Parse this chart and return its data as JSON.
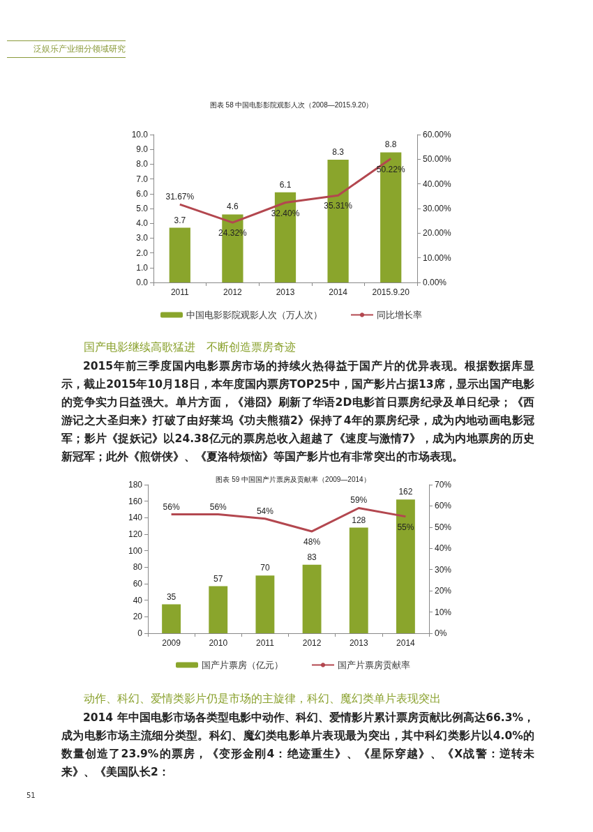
{
  "chart_data": [
    {
      "type": "bar",
      "title": "图表 58 中国电影影院观影人次（2008—2015.9.20）",
      "categories": [
        "2011",
        "2012",
        "2013",
        "2014",
        "2015.9.20"
      ],
      "series": [
        {
          "name": "中国电影影院观影人次（万人次）",
          "color": "#8aa52c",
          "values": [
            3.7,
            4.6,
            6.1,
            8.3,
            8.8
          ],
          "value_labels": [
            "3.7",
            "4.6",
            "6.1",
            "8.3",
            "8.8"
          ]
        },
        {
          "type": "line",
          "name": "同比增长率",
          "color": "#b3474f",
          "axis": "y2",
          "values": [
            31.67,
            24.32,
            32.4,
            35.31,
            50.22
          ],
          "value_labels": [
            "31.67%",
            "24.32%",
            "32.40%",
            "35.31%",
            "50.22%"
          ]
        }
      ],
      "ylim": [
        0,
        10
      ],
      "yticks": [
        {
          "value": 0,
          "label": "0.0"
        },
        {
          "value": 1,
          "label": "1.0"
        },
        {
          "value": 2,
          "label": "2.0"
        },
        {
          "value": 3,
          "label": "3.0"
        },
        {
          "value": 4,
          "label": "4.0"
        },
        {
          "value": 5,
          "label": "5.0"
        },
        {
          "value": 6,
          "label": "6.0"
        },
        {
          "value": 7,
          "label": "7.0"
        },
        {
          "value": 8,
          "label": "8.0"
        },
        {
          "value": 9,
          "label": "9.0"
        },
        {
          "value": 10,
          "label": "10.0"
        }
      ],
      "y2lim": [
        0,
        60
      ],
      "y2ticks": [
        {
          "value": 0,
          "label": "0.00%"
        },
        {
          "value": 10,
          "label": "10.00%"
        },
        {
          "value": 20,
          "label": "20.00%"
        },
        {
          "value": 30,
          "label": "30.00%"
        },
        {
          "value": 40,
          "label": "40.00%"
        },
        {
          "value": 50,
          "label": "50.00%"
        },
        {
          "value": 60,
          "label": "60.00%"
        }
      ],
      "grid": false,
      "legend": "bottom",
      "marker": "none",
      "line_style": "solid",
      "annotations": [
        "泛娱乐产业细分领域研究",
        "国产电影继续高歌猛进　不断创造票房奇迹",
        "2015年前三季度国内电影票房市场的持续火热得益于国产片的优异表现。根据数据库显示，截止2015年10月18日，本年度国内票房TOP25中，国产影片占据13席，显示出国产电影的竞争实力日益强大。单片方面，《港囧》刷新了华语2D电影首日票房纪录及单日纪录；《西游记之大圣归来》打破了由好莱坞《功夫熊猫2》保持了4年的票房纪录，成为内地动画电影冠军；影片《捉妖记》以24.38亿元的票房总收入超越了《速度与激情7》，成为内地票房的历史新冠军；此外《煎饼侠》、《夏洛特烦恼》等国产影片也有非常突出的市场表现。"
      ]
    },
    {
      "type": "bar",
      "title": "图表 59 中国国产片票房及贡献率（2009—2014）",
      "categories": [
        "2009",
        "2010",
        "2011",
        "2012",
        "2013",
        "2014"
      ],
      "series": [
        {
          "name": "国产片票房（亿元）",
          "color": "#8aa52c",
          "values": [
            35,
            57,
            70,
            83,
            128,
            162
          ],
          "value_labels": [
            "35",
            "57",
            "70",
            "83",
            "128",
            "162"
          ]
        },
        {
          "type": "line",
          "name": "国产片票房贡献率",
          "color": "#b3474f",
          "axis": "y2",
          "values": [
            56,
            56,
            54,
            48,
            59,
            55
          ],
          "value_labels": [
            "56%",
            "56%",
            "54%",
            "48%",
            "59%",
            "55%"
          ]
        }
      ],
      "ylim": [
        0,
        180
      ],
      "yticks": [
        0,
        20,
        40,
        60,
        80,
        100,
        120,
        140,
        160,
        180
      ],
      "y2lim": [
        0,
        70
      ],
      "y2ticks": [
        {
          "value": 0,
          "label": "0%"
        },
        {
          "value": 10,
          "label": "10%"
        },
        {
          "value": 20,
          "label": "20%"
        },
        {
          "value": 30,
          "label": "30%"
        },
        {
          "value": 40,
          "label": "40%"
        },
        {
          "value": 50,
          "label": "50%"
        },
        {
          "value": 60,
          "label": "60%"
        },
        {
          "value": 70,
          "label": "70%"
        }
      ],
      "grid": false,
      "legend": "bottom",
      "marker": "none",
      "line_style": "solid",
      "annotations": [
        "动作、科幻、爱情类影片仍是市场的主旋律，科幻、魔幻类单片表现突出",
        "2014 年中国电影市场各类型电影中动作、科幻、爱情影片累计票房贡献比例高达66.3%，成为电影市场主流细分类型。科幻、魔幻类电影单片表现最为突出，其中科幻类影片以4.0%的数量创造了23.9%的票房，《变形金刚4：绝迹重生》、《星际穿越》、《X战警：逆转未来》、《美国队长2：",
        "51"
      ]
    }
  ]
}
